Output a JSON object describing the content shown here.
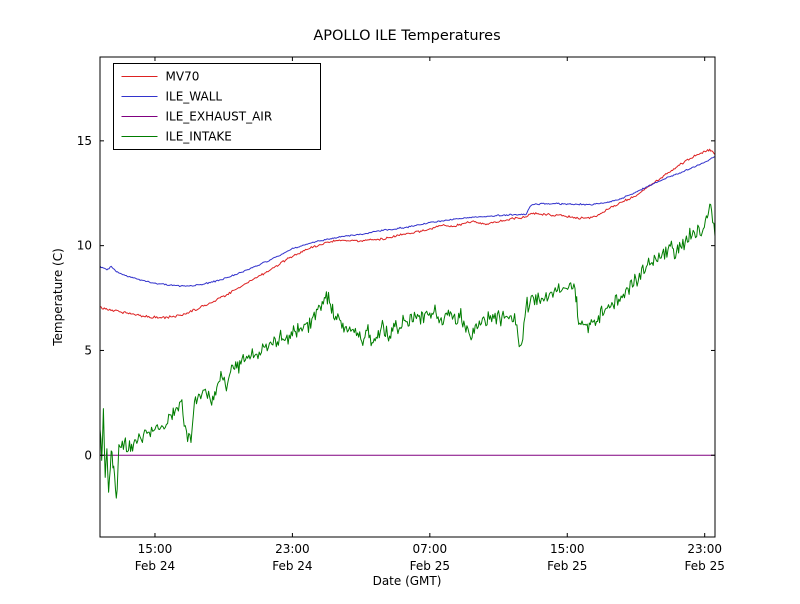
{
  "title": "APOLLO ILE Temperatures",
  "chart_data": {
    "type": "line",
    "title": "APOLLO ILE Temperatures",
    "xlabel": "Date (GMT)",
    "ylabel": "Temperature (C)",
    "background": "#ffffff",
    "frame_color": "#000000",
    "grid": false,
    "legend_position": "upper left",
    "x_unit": "hours since Feb 24 00:00 GMT",
    "xlim": [
      11.8,
      47.6
    ],
    "ylim": [
      -3.9,
      19.0
    ],
    "xticks": [
      {
        "t": 15,
        "time": "15:00",
        "date": "Feb 24"
      },
      {
        "t": 23,
        "time": "23:00",
        "date": "Feb 24"
      },
      {
        "t": 31,
        "time": "07:00",
        "date": "Feb 25"
      },
      {
        "t": 39,
        "time": "15:00",
        "date": "Feb 25"
      },
      {
        "t": 47,
        "time": "23:00",
        "date": "Feb 25"
      }
    ],
    "yticks": [
      0,
      5,
      10,
      15
    ],
    "series": [
      {
        "name": "MV70",
        "color": "#dd2222",
        "noise": 0.05,
        "points": [
          [
            11.8,
            7.05
          ],
          [
            12.3,
            6.95
          ],
          [
            13,
            6.85
          ],
          [
            13.8,
            6.72
          ],
          [
            14.5,
            6.62
          ],
          [
            15.3,
            6.55
          ],
          [
            16,
            6.6
          ],
          [
            16.8,
            6.75
          ],
          [
            17.5,
            7.0
          ],
          [
            18.3,
            7.3
          ],
          [
            19,
            7.6
          ],
          [
            19.8,
            7.95
          ],
          [
            20.5,
            8.3
          ],
          [
            21.3,
            8.65
          ],
          [
            22,
            9.0
          ],
          [
            22.8,
            9.4
          ],
          [
            23.5,
            9.7
          ],
          [
            24.3,
            9.95
          ],
          [
            25,
            10.15
          ],
          [
            25.6,
            10.25
          ],
          [
            26.5,
            10.25
          ],
          [
            27,
            10.2
          ],
          [
            27.8,
            10.3
          ],
          [
            28.5,
            10.35
          ],
          [
            29.3,
            10.5
          ],
          [
            30,
            10.6
          ],
          [
            31,
            10.78
          ],
          [
            31.8,
            11.0
          ],
          [
            32.3,
            10.9
          ],
          [
            33,
            11.05
          ],
          [
            33.6,
            11.15
          ],
          [
            34.2,
            11.0
          ],
          [
            35,
            11.15
          ],
          [
            35.8,
            11.28
          ],
          [
            36.5,
            11.35
          ],
          [
            36.9,
            11.55
          ],
          [
            37.5,
            11.5
          ],
          [
            38.5,
            11.45
          ],
          [
            39.5,
            11.3
          ],
          [
            40.5,
            11.35
          ],
          [
            41,
            11.55
          ],
          [
            42,
            12.0
          ],
          [
            43,
            12.4
          ],
          [
            44,
            12.95
          ],
          [
            45,
            13.55
          ],
          [
            46,
            14.1
          ],
          [
            47,
            14.5
          ],
          [
            47.35,
            14.55
          ],
          [
            47.6,
            14.35
          ]
        ]
      },
      {
        "name": "ILE_WALL",
        "color": "#3333cc",
        "noise": 0.03,
        "points": [
          [
            11.8,
            9.0
          ],
          [
            12.2,
            8.85
          ],
          [
            12.45,
            9.0
          ],
          [
            12.7,
            8.8
          ],
          [
            13.2,
            8.6
          ],
          [
            14,
            8.4
          ],
          [
            14.8,
            8.25
          ],
          [
            15.5,
            8.15
          ],
          [
            16.3,
            8.08
          ],
          [
            17,
            8.08
          ],
          [
            17.8,
            8.15
          ],
          [
            18.5,
            8.3
          ],
          [
            19.3,
            8.5
          ],
          [
            20,
            8.72
          ],
          [
            20.8,
            9.0
          ],
          [
            21.5,
            9.25
          ],
          [
            22.3,
            9.55
          ],
          [
            23,
            9.85
          ],
          [
            24,
            10.1
          ],
          [
            25,
            10.3
          ],
          [
            26,
            10.45
          ],
          [
            27,
            10.55
          ],
          [
            28,
            10.7
          ],
          [
            29,
            10.8
          ],
          [
            29.8,
            10.9
          ],
          [
            31,
            11.1
          ],
          [
            32,
            11.22
          ],
          [
            33,
            11.32
          ],
          [
            34,
            11.38
          ],
          [
            35,
            11.44
          ],
          [
            36,
            11.48
          ],
          [
            36.6,
            11.5
          ],
          [
            36.9,
            11.95
          ],
          [
            37.5,
            12.0
          ],
          [
            38.5,
            12.0
          ],
          [
            39.5,
            11.97
          ],
          [
            40.5,
            11.97
          ],
          [
            41.3,
            12.05
          ],
          [
            42,
            12.2
          ],
          [
            43,
            12.55
          ],
          [
            44,
            12.95
          ],
          [
            45,
            13.3
          ],
          [
            46,
            13.62
          ],
          [
            47,
            13.98
          ],
          [
            47.6,
            14.25
          ]
        ]
      },
      {
        "name": "ILE_EXHAUST_AIR",
        "color": "#800080",
        "noise": 0,
        "points": [
          [
            11.8,
            0.0
          ],
          [
            47.6,
            0.0
          ]
        ]
      },
      {
        "name": "ILE_INTAKE",
        "color": "#007d00",
        "noise": 0.32,
        "points": [
          [
            11.8,
            1.2
          ],
          [
            11.9,
            -0.3
          ],
          [
            12.0,
            1.8
          ],
          [
            12.1,
            -1.0
          ],
          [
            12.2,
            0.5
          ],
          [
            12.3,
            -1.8
          ],
          [
            12.45,
            0.3
          ],
          [
            12.6,
            -0.6
          ],
          [
            12.75,
            -2.1
          ],
          [
            12.9,
            0.2
          ],
          [
            13.1,
            0.5
          ],
          [
            13.4,
            0.3
          ],
          [
            13.7,
            0.6
          ],
          [
            14,
            0.8
          ],
          [
            14.4,
            1.0
          ],
          [
            14.8,
            1.1
          ],
          [
            15.2,
            1.25
          ],
          [
            15.6,
            1.5
          ],
          [
            16,
            1.8
          ],
          [
            16.3,
            2.3
          ],
          [
            16.5,
            2.7
          ],
          [
            16.7,
            1.7
          ],
          [
            16.9,
            0.8
          ],
          [
            17.1,
            0.7
          ],
          [
            17.3,
            2.4
          ],
          [
            17.6,
            2.9
          ],
          [
            18,
            3.1
          ],
          [
            18.3,
            2.6
          ],
          [
            18.6,
            3.4
          ],
          [
            18.9,
            3.7
          ],
          [
            19.1,
            3.1
          ],
          [
            19.4,
            4.0
          ],
          [
            19.7,
            4.2
          ],
          [
            20,
            4.4
          ],
          [
            20.4,
            4.6
          ],
          [
            20.8,
            4.8
          ],
          [
            21.2,
            5.0
          ],
          [
            21.6,
            5.15
          ],
          [
            22,
            5.4
          ],
          [
            22.5,
            5.6
          ],
          [
            23,
            5.85
          ],
          [
            23.5,
            6.05
          ],
          [
            24,
            6.3
          ],
          [
            24.4,
            6.9
          ],
          [
            24.8,
            7.3
          ],
          [
            25.1,
            7.4
          ],
          [
            25.4,
            6.9
          ],
          [
            25.7,
            6.4
          ],
          [
            26,
            6.2
          ],
          [
            26.4,
            6.0
          ],
          [
            26.8,
            5.8
          ],
          [
            27.1,
            5.5
          ],
          [
            27.4,
            5.9
          ],
          [
            27.7,
            5.3
          ],
          [
            28,
            5.7
          ],
          [
            28.3,
            6.2
          ],
          [
            28.6,
            5.5
          ],
          [
            28.9,
            6.4
          ],
          [
            29.2,
            6.0
          ],
          [
            29.5,
            6.6
          ],
          [
            29.8,
            6.3
          ],
          [
            30.1,
            6.8
          ],
          [
            30.4,
            6.4
          ],
          [
            30.7,
            6.6
          ],
          [
            31,
            6.7
          ],
          [
            31.3,
            6.9
          ],
          [
            31.6,
            6.3
          ],
          [
            31.9,
            6.6
          ],
          [
            32.2,
            6.9
          ],
          [
            32.5,
            6.4
          ],
          [
            32.8,
            6.6
          ],
          [
            33.1,
            6.2
          ],
          [
            33.4,
            5.5
          ],
          [
            33.7,
            6.3
          ],
          [
            34,
            6.5
          ],
          [
            34.4,
            6.6
          ],
          [
            34.8,
            6.5
          ],
          [
            35.2,
            6.6
          ],
          [
            35.6,
            6.6
          ],
          [
            36,
            6.4
          ],
          [
            36.2,
            5.3
          ],
          [
            36.35,
            5.1
          ],
          [
            36.6,
            7.1
          ],
          [
            36.9,
            7.35
          ],
          [
            37.3,
            7.45
          ],
          [
            37.7,
            7.55
          ],
          [
            38.1,
            7.7
          ],
          [
            38.5,
            7.85
          ],
          [
            38.9,
            8.0
          ],
          [
            39.2,
            8.1
          ],
          [
            39.45,
            7.9
          ],
          [
            39.6,
            6.5
          ],
          [
            39.8,
            6.2
          ],
          [
            40.1,
            6.1
          ],
          [
            40.4,
            6.2
          ],
          [
            40.7,
            6.4
          ],
          [
            41,
            6.7
          ],
          [
            41.4,
            7.0
          ],
          [
            41.8,
            7.3
          ],
          [
            42.2,
            7.7
          ],
          [
            42.6,
            8.0
          ],
          [
            43,
            8.4
          ],
          [
            43.4,
            8.8
          ],
          [
            43.8,
            9.1
          ],
          [
            44.2,
            9.4
          ],
          [
            44.6,
            9.65
          ],
          [
            45,
            9.9
          ],
          [
            45.3,
            9.6
          ],
          [
            45.6,
            10.1
          ],
          [
            46,
            10.3
          ],
          [
            46.4,
            10.55
          ],
          [
            46.8,
            10.8
          ],
          [
            47.1,
            11.2
          ],
          [
            47.25,
            11.9
          ],
          [
            47.4,
            11.6
          ],
          [
            47.6,
            10.45
          ]
        ]
      }
    ]
  }
}
